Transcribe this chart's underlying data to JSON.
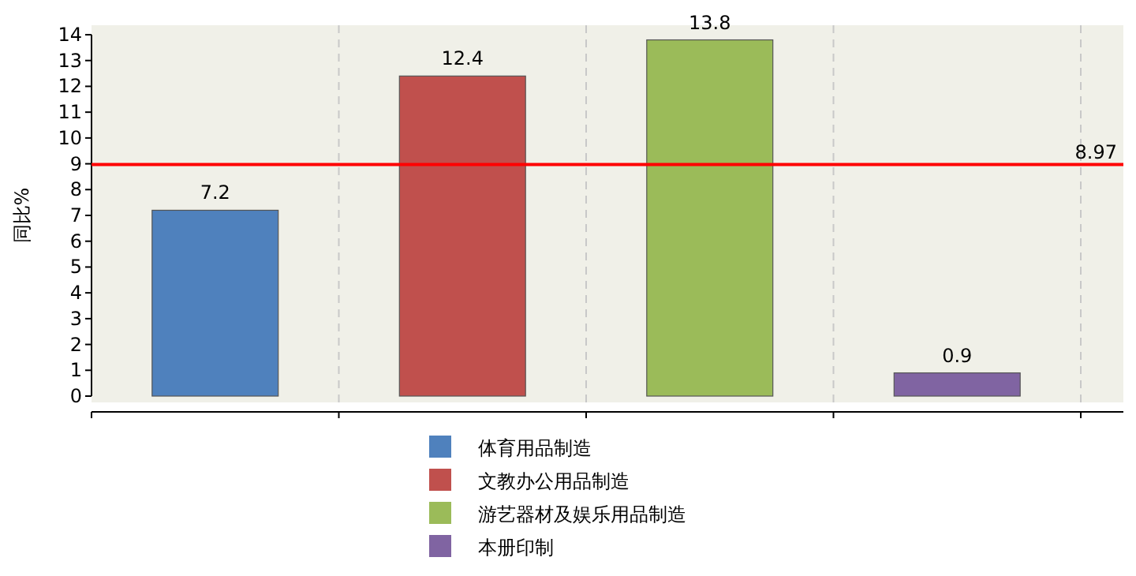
{
  "chart_data": {
    "type": "bar",
    "ylabel": "同比%",
    "categories": [
      null,
      null,
      null,
      null
    ],
    "series": [
      {
        "name": "体育用品制造",
        "color": "#4f81bd",
        "values": [
          7.2,
          null,
          null,
          null
        ]
      },
      {
        "name": "文教办公用品制造",
        "color": "#c0504d",
        "values": [
          null,
          12.4,
          null,
          null
        ]
      },
      {
        "name": "游艺器材及娱乐用品制造",
        "color": "#9bbb59",
        "values": [
          null,
          null,
          13.8,
          null
        ]
      },
      {
        "name": "本册印制",
        "color": "#8064a2",
        "values": [
          null,
          null,
          null,
          0.9
        ]
      }
    ],
    "ylim": [
      0,
      14
    ],
    "yticks": [
      0,
      1,
      2,
      3,
      4,
      5,
      6,
      7,
      8,
      9,
      10,
      11,
      12,
      13,
      14
    ],
    "ref_lines": [
      {
        "axis": "y",
        "value": 8.97,
        "label": "8.97",
        "color": "#ff0000"
      }
    ],
    "data_labels": true,
    "grid": "x",
    "legend": "bottom"
  }
}
